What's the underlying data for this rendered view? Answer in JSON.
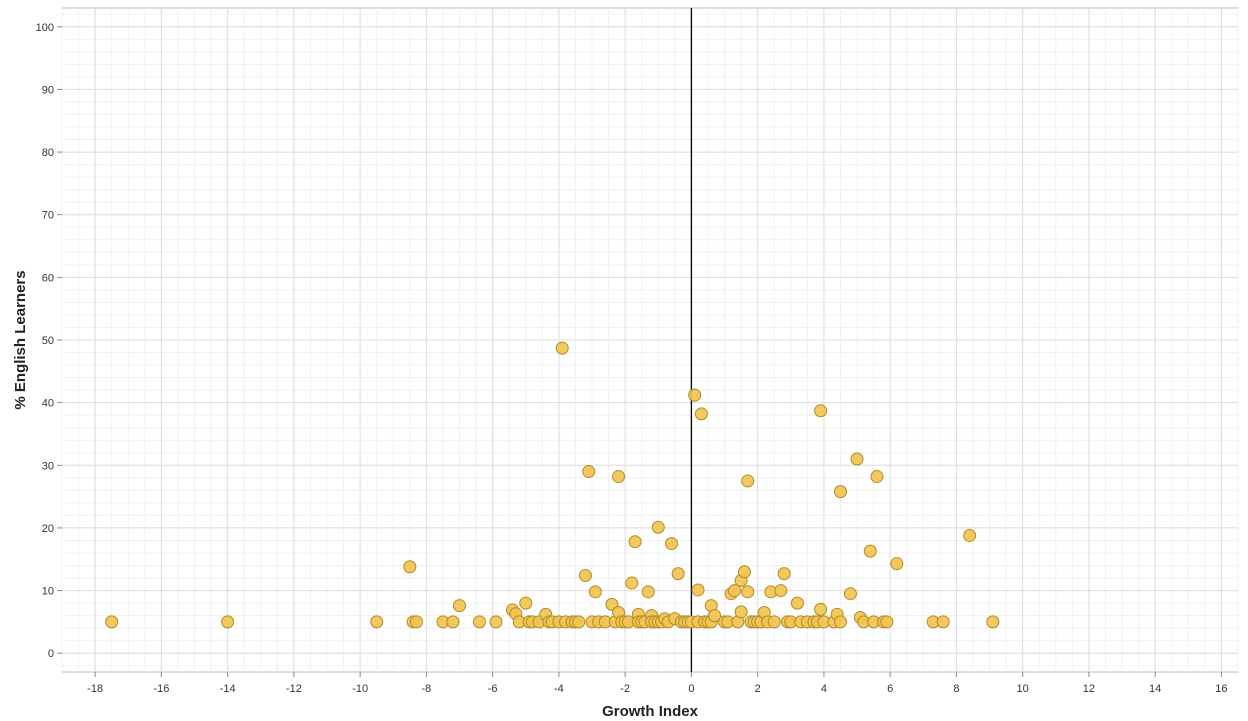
{
  "chart_data": {
    "type": "scatter",
    "title": "",
    "xlabel": "Growth Index",
    "ylabel": "% English Learners",
    "xlim": [
      -19,
      16.5
    ],
    "ylim": [
      -3,
      103
    ],
    "x_ticks": [
      -18,
      -16,
      -14,
      -12,
      -10,
      -8,
      -6,
      -4,
      -2,
      0,
      2,
      4,
      6,
      8,
      10,
      12,
      14,
      16
    ],
    "y_ticks": [
      0,
      10,
      20,
      30,
      40,
      50,
      60,
      70,
      80,
      90,
      100
    ],
    "grid": true,
    "reference_line_x": 0,
    "point_color": "#f2c450",
    "point_edge_color": "#b08a2a",
    "series": [
      {
        "x": [
          -17.5,
          -14.0,
          -9.5,
          -8.5,
          -8.4,
          -8.3,
          -7.5,
          -7.2,
          -7.0,
          -6.4,
          -5.9,
          -5.4,
          -5.3,
          -5.2,
          -5.0,
          -4.9,
          -4.8,
          -4.6,
          -4.4,
          -4.3,
          -4.2,
          -4.0,
          -3.9,
          -3.8,
          -3.6,
          -3.5,
          -3.4,
          -3.2,
          -3.1,
          -3.0,
          -2.9,
          -2.8,
          -2.6,
          -2.4,
          -2.3,
          -2.2,
          -2.2,
          -2.1,
          -2.0,
          -1.9,
          -1.8,
          -1.7,
          -1.6,
          -1.6,
          -1.5,
          -1.4,
          -1.3,
          -1.2,
          -1.2,
          -1.1,
          -1.0,
          -1.0,
          -0.9,
          -0.8,
          -0.7,
          -0.6,
          -0.5,
          -0.4,
          -0.3,
          -0.2,
          -0.1,
          0.0,
          0.1,
          0.2,
          0.2,
          0.3,
          0.4,
          0.5,
          0.6,
          0.6,
          0.7,
          1.0,
          1.1,
          1.2,
          1.3,
          1.4,
          1.5,
          1.5,
          1.6,
          1.7,
          1.7,
          1.8,
          1.9,
          2.0,
          2.1,
          2.2,
          2.3,
          2.4,
          2.5,
          2.7,
          2.8,
          2.9,
          3.0,
          3.2,
          3.3,
          3.5,
          3.7,
          3.8,
          3.9,
          3.9,
          4.0,
          4.3,
          4.4,
          4.5,
          4.5,
          4.8,
          5.0,
          5.1,
          5.2,
          5.4,
          5.5,
          5.6,
          5.8,
          5.9,
          6.2,
          7.3,
          7.6,
          8.4,
          9.1
        ],
        "y": [
          5,
          5,
          5,
          13.8,
          5,
          5,
          5,
          5,
          7.6,
          5,
          5,
          6.9,
          6.3,
          5,
          8,
          5,
          5,
          5,
          6.2,
          5,
          5,
          5,
          48.7,
          5,
          5,
          5,
          5,
          12.4,
          29,
          5,
          9.8,
          5,
          5,
          7.8,
          5,
          28.2,
          6.5,
          5,
          5,
          5,
          11.2,
          17.8,
          6.2,
          5,
          5,
          5,
          9.8,
          6,
          5,
          5,
          20.1,
          5,
          5,
          5.5,
          5,
          17.5,
          5.5,
          12.7,
          5,
          5,
          5,
          5,
          41.2,
          10.1,
          5,
          38.2,
          5,
          5,
          7.6,
          5,
          6,
          5,
          5,
          9.5,
          10,
          5,
          11.6,
          6.6,
          13,
          27.5,
          9.8,
          5,
          5,
          5,
          5,
          6.5,
          5,
          9.8,
          5,
          10,
          12.7,
          5,
          5,
          8,
          5,
          5,
          5,
          5,
          38.7,
          7,
          5,
          5,
          6.2,
          25.8,
          5,
          9.5,
          31,
          5.7,
          5,
          16.3,
          5,
          28.2,
          5,
          5,
          14.3,
          5,
          5,
          18.8,
          5
        ]
      }
    ]
  }
}
